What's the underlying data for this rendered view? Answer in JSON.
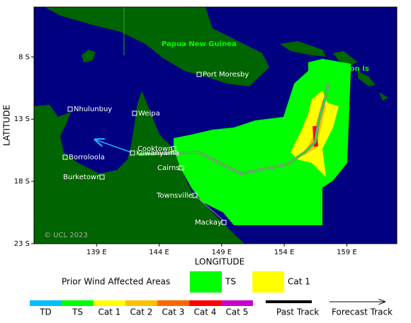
{
  "map": {
    "xlim": [
      134,
      163
    ],
    "ylim": [
      -23,
      -4
    ],
    "xlabel": "LONGITUDE",
    "ylabel": "LATITUDE",
    "xticks": [
      {
        "value": 139,
        "label": "139 E"
      },
      {
        "value": 144,
        "label": "144 E"
      },
      {
        "value": 149,
        "label": "149 E"
      },
      {
        "value": 154,
        "label": "154 E"
      },
      {
        "value": 159,
        "label": "159 E"
      }
    ],
    "yticks": [
      {
        "value": -8,
        "label": "8 S"
      },
      {
        "value": -13,
        "label": "13 S"
      },
      {
        "value": -18,
        "label": "18 S"
      },
      {
        "value": -23,
        "label": "23 S"
      }
    ],
    "country": "Papua New Guinea",
    "islands": "Solomon Is",
    "places": [
      "Port Moresby",
      "Nhulunbuy",
      "Weipa",
      "Borroloola",
      "Burketown",
      "Kowanyama",
      "Cooktown",
      "Cairns",
      "Townsville",
      "Mackay"
    ],
    "copyright": "© UCL 2023"
  },
  "legend": {
    "title": "Prior Wind Affected Areas",
    "areas": [
      {
        "name": "TS",
        "color": "#00ff00"
      },
      {
        "name": "Cat 1",
        "color": "#ffff00"
      }
    ],
    "scale": [
      {
        "name": "TD",
        "color": "#00bfff"
      },
      {
        "name": "TS",
        "color": "#00ff00"
      },
      {
        "name": "Cat 1",
        "color": "#ffff00"
      },
      {
        "name": "Cat 2",
        "color": "#ffc000"
      },
      {
        "name": "Cat 3",
        "color": "#ff6600"
      },
      {
        "name": "Cat 4",
        "color": "#ff0000"
      },
      {
        "name": "Cat 5",
        "color": "#cc00cc"
      }
    ],
    "tracks": [
      "Past Track",
      "Forecast Track"
    ]
  }
}
